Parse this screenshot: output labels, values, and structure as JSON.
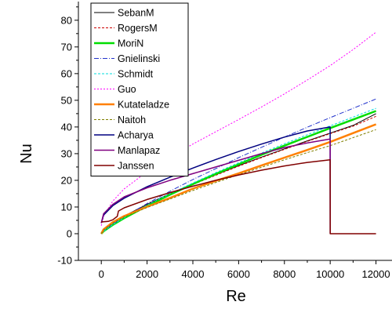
{
  "chart_data": {
    "type": "line",
    "xlabel": "Re",
    "ylabel": "Nu",
    "xlim": [
      -1000,
      12700
    ],
    "ylim": [
      -10,
      87
    ],
    "x_ticks": [
      0,
      2000,
      4000,
      6000,
      8000,
      10000,
      12000
    ],
    "y_ticks": [
      -10,
      0,
      10,
      20,
      30,
      40,
      50,
      60,
      70,
      80
    ],
    "x_tick_labels": [
      "0",
      "2000",
      "4000",
      "6000",
      "8000",
      "10000",
      "12000"
    ],
    "y_tick_labels": [
      "-10",
      "0",
      "10",
      "20",
      "30",
      "40",
      "50",
      "60",
      "70",
      "80"
    ],
    "grid": false,
    "legend_position": "top-left",
    "series": [
      {
        "name": "SebanM",
        "color": "#000000",
        "dash": "",
        "width": 1,
        "x": [
          0,
          100,
          500,
          1000,
          2000,
          3000,
          4000,
          5000,
          6000,
          7000,
          8000,
          9000,
          10000,
          11000,
          12000
        ],
        "y": [
          0,
          1.3,
          4.1,
          6.6,
          11.0,
          15.0,
          18.6,
          22.1,
          25.5,
          28.7,
          31.8,
          34.8,
          37.7,
          40.6,
          45.0
        ]
      },
      {
        "name": "RogersM",
        "color": "#cc0000",
        "dash": "3,2",
        "width": 1,
        "x": [
          0,
          100,
          500,
          1000,
          2000,
          3000,
          4000,
          5000,
          6000,
          7000,
          8000,
          9000,
          10000,
          11000,
          12000
        ],
        "y": [
          0,
          1.2,
          3.9,
          6.4,
          10.8,
          14.8,
          18.4,
          21.9,
          25.3,
          28.5,
          31.6,
          34.6,
          37.5,
          40.3,
          44.0
        ]
      },
      {
        "name": "MoriN",
        "color": "#00dd00",
        "dash": "",
        "width": 2.5,
        "x": [
          0,
          100,
          500,
          1000,
          2000,
          3000,
          4000,
          5000,
          6000,
          7000,
          8000,
          9000,
          10000,
          11000,
          12000
        ],
        "y": [
          0,
          0.9,
          3.3,
          5.8,
          10.4,
          14.6,
          18.6,
          22.4,
          26.0,
          29.6,
          33.0,
          36.3,
          39.6,
          42.8,
          46.0
        ]
      },
      {
        "name": "Gnielinski",
        "color": "#2233cc",
        "dash": "6,2,1,2",
        "width": 1,
        "x": [
          0,
          100,
          500,
          1000,
          2000,
          3000,
          4000,
          5000,
          6000,
          7000,
          8000,
          9000,
          10000,
          11000,
          12000
        ],
        "y": [
          0,
          1.0,
          3.6,
          6.3,
          11.3,
          15.9,
          20.3,
          24.4,
          28.5,
          32.4,
          36.2,
          39.9,
          43.5,
          47.0,
          50.5
        ]
      },
      {
        "name": "Schmidt",
        "color": "#00dddd",
        "dash": "3,2",
        "width": 1,
        "x": [
          0,
          100,
          500,
          1000,
          2000,
          3000,
          4000,
          5000,
          6000,
          7000,
          8000,
          9000,
          10000,
          11000,
          12000
        ],
        "y": [
          0,
          0.9,
          3.4,
          6.0,
          10.7,
          15.0,
          19.0,
          22.9,
          26.6,
          30.2,
          33.7,
          37.1,
          40.4,
          43.7,
          47.0
        ]
      },
      {
        "name": "Guo",
        "color": "#ff00ff",
        "dash": "2,2",
        "width": 1,
        "x": [
          0,
          100,
          500,
          1000,
          2000,
          3000,
          4000,
          5000,
          6000,
          7000,
          8000,
          9000,
          10000,
          11000,
          12000
        ],
        "y": [
          3,
          6.5,
          12.2,
          16.8,
          23.2,
          28.6,
          33.6,
          38.2,
          42.8,
          47.5,
          52.4,
          57.6,
          63.0,
          69.0,
          75.5
        ]
      },
      {
        "name": "Kutateladze",
        "color": "#ff8000",
        "dash": "",
        "width": 2.5,
        "x": [
          0,
          100,
          500,
          1000,
          2000,
          3000,
          4000,
          5000,
          6000,
          7000,
          8000,
          9000,
          10000,
          11000,
          12000
        ],
        "y": [
          0,
          1.6,
          4.3,
          6.6,
          10.1,
          13.4,
          16.9,
          19.8,
          22.6,
          25.6,
          28.5,
          31.4,
          34.4,
          37.7,
          41.0
        ]
      },
      {
        "name": "Naitoh",
        "color": "#808000",
        "dash": "3,2",
        "width": 1,
        "x": [
          0,
          100,
          500,
          1000,
          2000,
          3000,
          4000,
          5000,
          6000,
          7000,
          8000,
          9000,
          10000,
          11000,
          12000
        ],
        "y": [
          0,
          1.4,
          4.0,
          6.3,
          9.8,
          13.0,
          16.2,
          19.2,
          22.1,
          24.9,
          27.7,
          30.4,
          33.0,
          36.0,
          39.0
        ]
      },
      {
        "name": "Acharya",
        "color": "#000080",
        "dash": "",
        "width": 1.5,
        "x": [
          0,
          100,
          500,
          1000,
          2000,
          3000,
          4000,
          5000,
          6000,
          7000,
          8000,
          9000,
          9999,
          10000
        ],
        "y": [
          4,
          7.0,
          10.5,
          13.3,
          17.6,
          21.2,
          24.6,
          27.8,
          30.8,
          33.6,
          36.2,
          38.5,
          40.0,
          0
        ]
      },
      {
        "name": "Manlapaz",
        "color": "#800080",
        "dash": "",
        "width": 1.5,
        "x": [
          0,
          100,
          500,
          1000,
          2000,
          3000,
          4000,
          5000,
          6000,
          7000,
          8000,
          9000,
          9999,
          10000
        ],
        "y": [
          4,
          7.5,
          11.0,
          13.8,
          17.2,
          20.0,
          22.5,
          25.0,
          27.5,
          30.0,
          32.3,
          34.0,
          35.5,
          0
        ]
      },
      {
        "name": "Janssen",
        "color": "#800000",
        "dash": "",
        "width": 1.5,
        "x": [
          0,
          300,
          500,
          700,
          750,
          1000,
          2000,
          3000,
          4000,
          5000,
          6000,
          7000,
          8000,
          9000,
          9999,
          10000,
          11000,
          12000
        ],
        "y": [
          4.4,
          4.6,
          5.2,
          6.5,
          8.5,
          9.7,
          12.8,
          15.4,
          17.8,
          20.0,
          22.0,
          23.8,
          25.4,
          26.7,
          27.7,
          0,
          0,
          0
        ]
      }
    ]
  }
}
